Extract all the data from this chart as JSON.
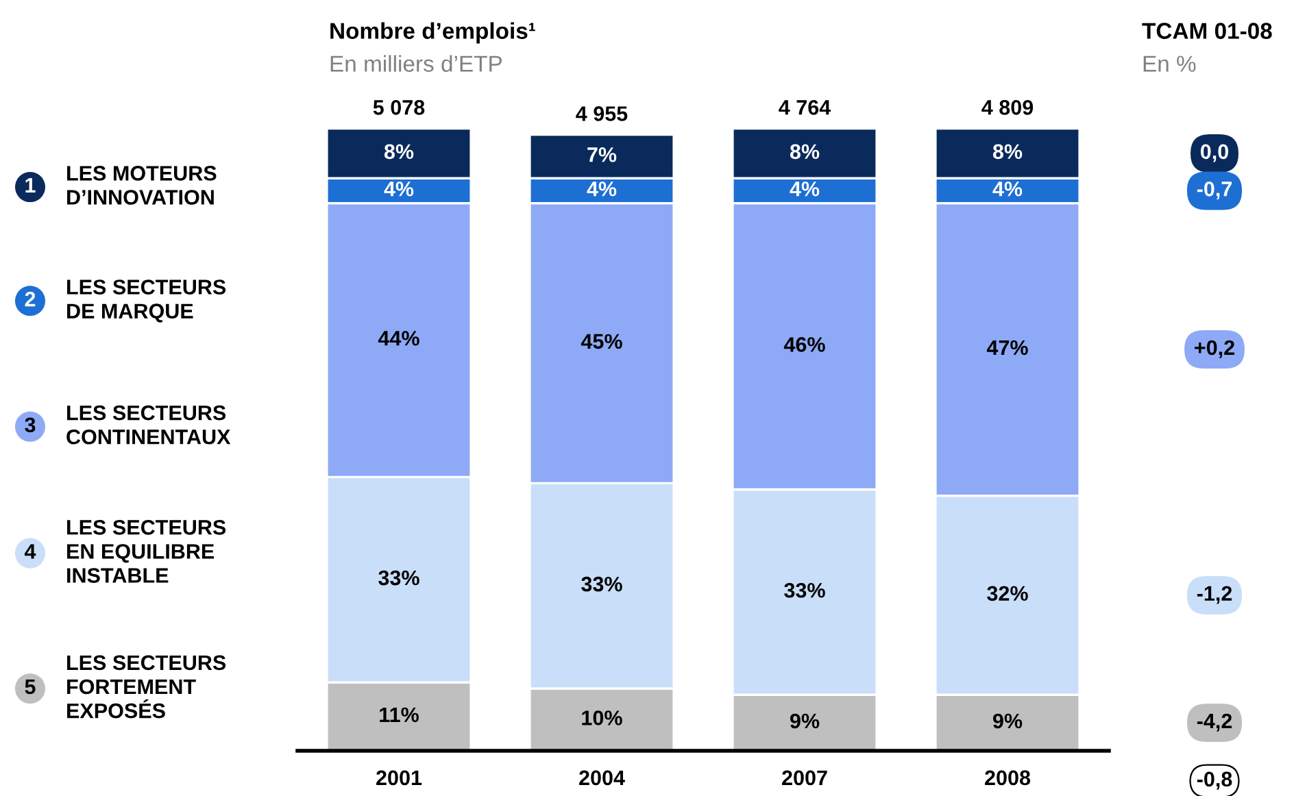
{
  "chart_data": {
    "type": "bar",
    "stacked": true,
    "title": "Nombre d’emplois¹",
    "subtitle": "En milliers d’ETP",
    "categories": [
      "2001",
      "2004",
      "2007",
      "2008"
    ],
    "series": [
      {
        "name": "LES SECTEURS\nFORTEMENT\nEXPOSÉS",
        "color": "#bfbfbf",
        "values": [
          11,
          10,
          9,
          9
        ],
        "value_labels": [
          "11%",
          "10%",
          "9%",
          "9%"
        ]
      },
      {
        "name": "LES SECTEURS\nEN EQUILIBRE\nINSTABLE",
        "color": "#c9def8",
        "values": [
          33,
          33,
          33,
          32
        ],
        "value_labels": [
          "33%",
          "33%",
          "33%",
          "32%"
        ]
      },
      {
        "name": "LES SECTEURS\nCONTINENTAUX",
        "color": "#8eaaf6",
        "values": [
          44,
          45,
          46,
          47
        ],
        "value_labels": [
          "44%",
          "45%",
          "46%",
          "47%"
        ]
      },
      {
        "name": "LES SECTEURS\nDE MARQUE",
        "color": "#1d6fd3",
        "values": [
          4,
          4,
          4,
          4
        ],
        "value_labels": [
          "4%",
          "4%",
          "4%",
          "4%"
        ]
      },
      {
        "name": "LES MOTEURS\nD’INNOVATION",
        "color": "#0b2a5c",
        "values": [
          8,
          7,
          8,
          8
        ],
        "value_labels": [
          "8%",
          "7%",
          "8%",
          "8%"
        ]
      }
    ],
    "legend": "left",
    "annotations": [
      "TCAM 01-08",
      "En %",
      "0,0",
      "-0,7",
      "+0,2",
      "-1,2",
      "-4,2",
      "-0,8",
      "1",
      "2",
      "3",
      "4",
      "5",
      "5 078",
      "4 955",
      "4 764",
      "4 809"
    ]
  }
}
